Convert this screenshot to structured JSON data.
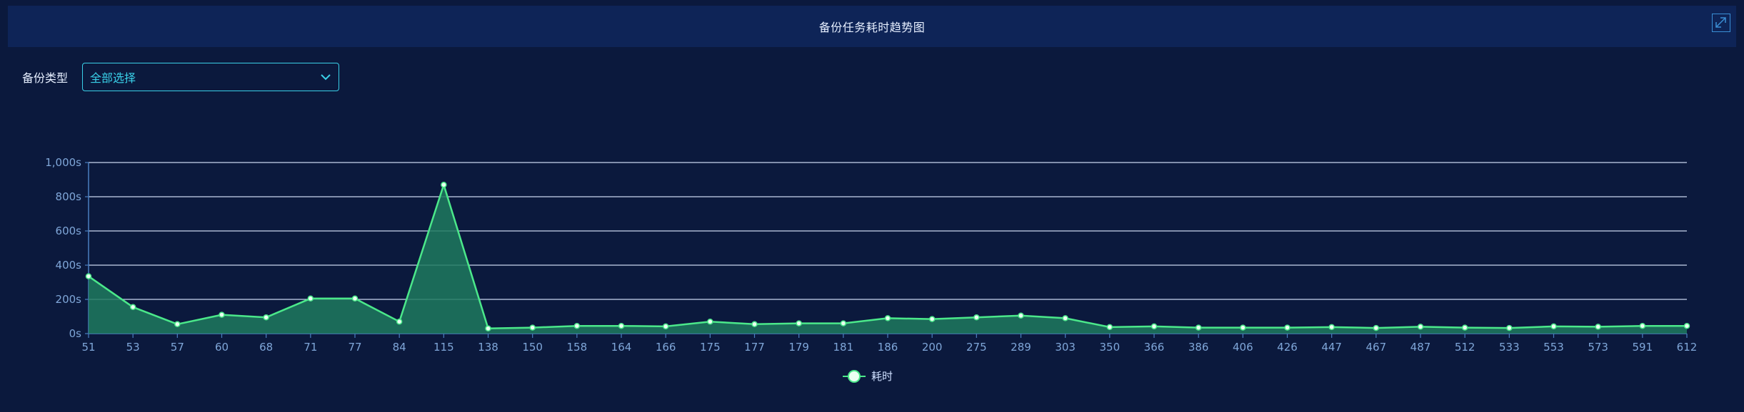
{
  "header": {
    "title": "备份任务耗时趋势图",
    "expand_icon": "expand-icon"
  },
  "filter": {
    "label": "备份类型",
    "selected": "全部选择",
    "dropdown_icon": "chevron-down-icon"
  },
  "colors": {
    "line": "#4be88a",
    "area": "#1f7a5e",
    "grid": "#c9d6ee",
    "axis": "#4a7fc0",
    "tick_text": "#7fa6d8",
    "select_border": "#3ad0e8"
  },
  "chart_data": {
    "type": "area",
    "title": "",
    "xlabel": "",
    "ylabel": "",
    "x": [
      "51",
      "53",
      "57",
      "60",
      "68",
      "71",
      "77",
      "84",
      "115",
      "138",
      "150",
      "158",
      "164",
      "166",
      "175",
      "177",
      "179",
      "181",
      "186",
      "200",
      "275",
      "289",
      "303",
      "350",
      "366",
      "386",
      "406",
      "426",
      "447",
      "467",
      "487",
      "512",
      "533",
      "553",
      "573",
      "591",
      "612"
    ],
    "series": [
      {
        "name": "耗时",
        "values": [
          335,
          155,
          55,
          110,
          95,
          205,
          205,
          70,
          870,
          30,
          35,
          45,
          45,
          42,
          70,
          55,
          60,
          60,
          90,
          85,
          95,
          105,
          90,
          38,
          42,
          35,
          35,
          35,
          38,
          33,
          40,
          35,
          33,
          42,
          40,
          45,
          45
        ]
      }
    ],
    "ylim": [
      0,
      1000
    ],
    "yticks": [
      0,
      200,
      400,
      600,
      800,
      1000
    ],
    "ytick_labels": [
      "0s",
      "200s",
      "400s",
      "600s",
      "800s",
      "1,000s"
    ],
    "grid": true,
    "legend": "bottom-center"
  }
}
